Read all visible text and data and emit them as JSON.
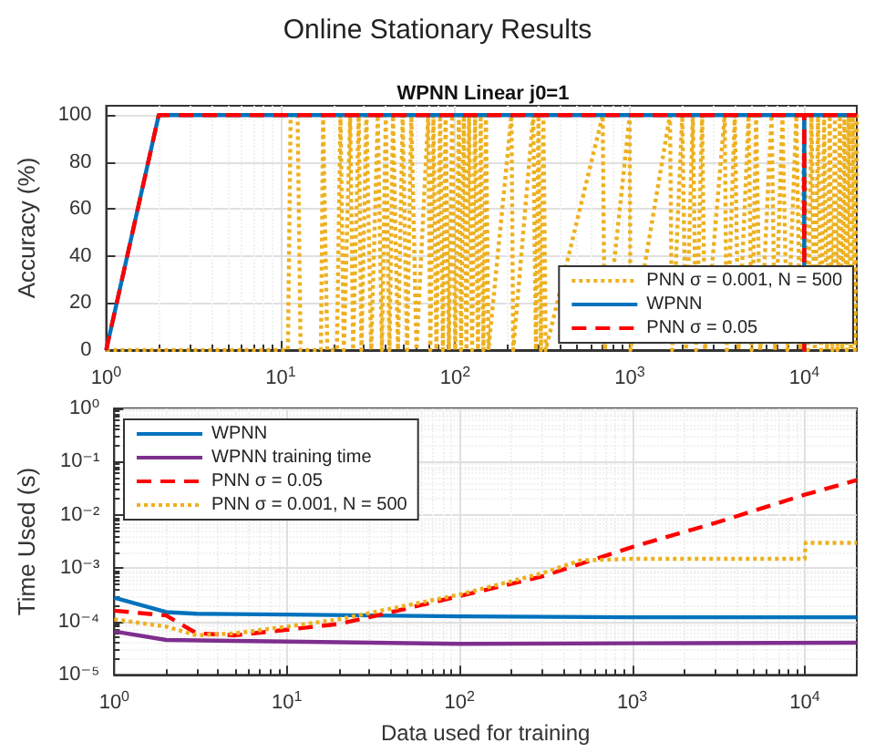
{
  "chart_data": [
    {
      "type": "line",
      "title": "Online Stationary Results",
      "subtitle": "WPNN Linear j0=1",
      "ylabel": "Accuracy (%)",
      "log": "x",
      "grid": true,
      "legend": "bottom right",
      "xlim": [
        1,
        20000
      ],
      "xticks": [
        {
          "value": 1,
          "label": "10$^{0}$"
        },
        {
          "value": 10,
          "label": "10$^{1}$"
        },
        {
          "value": 100,
          "label": "10$^{2}$"
        },
        {
          "value": 1000,
          "label": "10$^{3}$"
        },
        {
          "value": 10000,
          "label": "10$^{4}$"
        }
      ],
      "ylim": [
        0,
        104
      ],
      "yticks": [
        0,
        20,
        40,
        60,
        80,
        100
      ],
      "series": [
        {
          "name": "PNN σ = 0.001, N = 500",
          "color": "#edb120",
          "line_style": "dotted",
          "x": [
            1,
            11,
            11.4,
            12.5,
            13,
            17,
            17.5,
            18.5,
            21,
            22,
            23,
            25,
            26,
            28,
            29,
            31,
            33,
            36,
            38,
            40,
            42,
            44,
            47,
            50,
            53,
            56,
            60,
            70,
            72,
            75,
            78,
            82,
            85,
            88,
            92,
            96,
            100,
            105,
            108,
            112,
            116,
            120,
            125,
            130,
            135,
            140,
            145,
            150,
            155,
            210,
            215,
            280,
            290,
            300,
            310,
            320,
            330,
            700,
            720,
            1000,
            1010,
            1700,
            1750,
            2000,
            2100,
            2300,
            2400,
            2600,
            2700,
            3500,
            3600,
            4000,
            4200,
            4800,
            5000,
            5300,
            5600,
            6500,
            6800,
            7500,
            8000,
            9000,
            9500,
            10000,
            10500,
            11000,
            11500,
            12000,
            12500,
            13000,
            13500,
            14000,
            14500,
            15000,
            15500,
            16000,
            16500,
            17000,
            17500,
            18000,
            18500,
            19000,
            19500,
            20000
          ],
          "values": [
            0,
            0,
            100,
            100,
            0,
            0,
            100,
            0,
            0,
            100,
            0,
            100,
            0,
            100,
            0,
            100,
            0,
            100,
            0,
            100,
            0,
            100,
            0,
            100,
            0,
            100,
            0,
            100,
            0,
            100,
            0,
            100,
            0,
            100,
            0,
            100,
            0,
            100,
            0,
            100,
            0,
            100,
            0,
            100,
            0,
            100,
            0,
            100,
            0,
            100,
            0,
            100,
            0,
            100,
            0,
            100,
            0,
            100,
            0,
            100,
            0,
            100,
            0,
            100,
            0,
            100,
            0,
            100,
            0,
            100,
            0,
            100,
            0,
            100,
            0,
            100,
            0,
            100,
            0,
            100,
            0,
            100,
            0,
            100,
            0,
            100,
            0,
            100,
            0,
            100,
            0,
            100,
            0,
            100,
            0,
            100,
            0,
            100,
            0,
            100,
            0,
            100,
            0,
            100
          ]
        },
        {
          "name": "WPNN",
          "color": "#0072bd",
          "line_style": "solid",
          "x": [
            1,
            2,
            9990,
            10000,
            10010,
            20000
          ],
          "values": [
            0,
            100,
            100,
            0,
            100,
            100
          ]
        },
        {
          "name": "PNN σ = 0.05",
          "color": "#ff0000",
          "line_style": "dashed",
          "x": [
            1,
            2,
            9990,
            10000,
            10010,
            20000
          ],
          "values": [
            0,
            100,
            100,
            0,
            100,
            100
          ]
        }
      ]
    },
    {
      "type": "line",
      "xlabel": "Data used for training",
      "ylabel": "Time Used (s)",
      "log": "xy",
      "grid": true,
      "legend": "top left",
      "xlim": [
        1,
        20000
      ],
      "xticks": [
        {
          "value": 1,
          "label": "10$^{0}$"
        },
        {
          "value": 10,
          "label": "10$^{1}$"
        },
        {
          "value": 100,
          "label": "10$^{2}$"
        },
        {
          "value": 1000,
          "label": "10$^{3}$"
        },
        {
          "value": 10000,
          "label": "10$^{4}$"
        }
      ],
      "ylim": [
        1e-05,
        1
      ],
      "yticks": [
        {
          "value": 1e-05,
          "label": "10⁻⁵"
        },
        {
          "value": 0.0001,
          "label": "10⁻⁴"
        },
        {
          "value": 0.001,
          "label": "10⁻³"
        },
        {
          "value": 0.01,
          "label": "10⁻²"
        },
        {
          "value": 0.1,
          "label": "10⁻¹"
        },
        {
          "value": 1,
          "label": "10⁰"
        }
      ],
      "series": [
        {
          "name": "WPNN",
          "color": "#0072bd",
          "line_style": "solid",
          "x": [
            1,
            2,
            3,
            10,
            100,
            1000,
            20000
          ],
          "values": [
            0.00028,
            0.00015,
            0.00014,
            0.000135,
            0.000125,
            0.00012,
            0.00012
          ]
        },
        {
          "name": "WPNN training time",
          "color": "#7e2f8e",
          "line_style": "solid",
          "x": [
            1,
            2,
            10,
            100,
            1000,
            20000
          ],
          "values": [
            6.5e-05,
            4.5e-05,
            4.2e-05,
            3.8e-05,
            3.9e-05,
            4e-05
          ]
        },
        {
          "name": "PNN σ = 0.05",
          "color": "#ff0000",
          "line_style": "dashed",
          "x": [
            1,
            2,
            3,
            5,
            10,
            20,
            30,
            100,
            300,
            1000,
            3000,
            10000,
            20000
          ],
          "values": [
            0.00016,
            0.00013,
            6e-05,
            5.5e-05,
            7e-05,
            9e-05,
            0.00012,
            0.0003,
            0.0007,
            0.0025,
            0.007,
            0.024,
            0.045
          ]
        },
        {
          "name": "PNN σ = 0.001, N = 500",
          "color": "#edb120",
          "line_style": "dotted",
          "x": [
            1,
            2,
            3,
            5,
            10,
            20,
            100,
            300,
            500,
            1000,
            5000,
            10000,
            10100,
            20000
          ],
          "values": [
            0.00011,
            8e-05,
            5.5e-05,
            6e-05,
            8e-05,
            0.00011,
            0.00032,
            0.0008,
            0.0014,
            0.0015,
            0.0015,
            0.0015,
            0.003,
            0.003
          ]
        }
      ]
    }
  ]
}
